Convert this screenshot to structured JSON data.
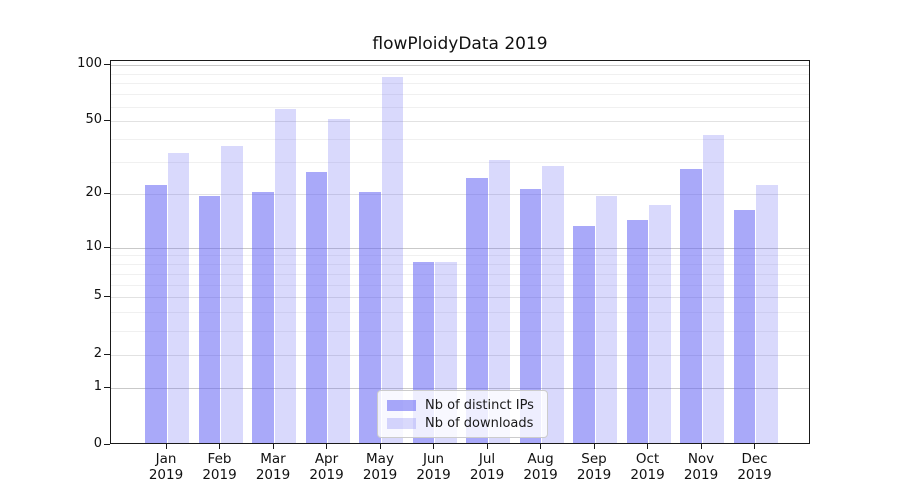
{
  "title": "flowPloidyData 2019",
  "chart_data": {
    "type": "bar",
    "title": "flowPloidyData 2019",
    "categories": [
      "Jan",
      "Feb",
      "Mar",
      "Apr",
      "May",
      "Jun",
      "Jul",
      "Aug",
      "Sep",
      "Oct",
      "Nov",
      "Dec"
    ],
    "year": "2019",
    "series": [
      {
        "name": "Nb of distinct IPs",
        "color": "rgba(98,98,244,0.55)",
        "values": [
          22,
          19,
          20,
          26,
          20,
          8,
          24,
          21,
          13,
          14,
          27,
          16
        ]
      },
      {
        "name": "Nb of downloads",
        "color": "rgba(98,98,244,0.24)",
        "values": [
          33,
          36,
          57,
          50,
          84,
          8,
          30,
          28,
          19,
          17,
          41,
          22
        ]
      }
    ],
    "xlabel": "",
    "ylabel": "",
    "yscale": "log10(1+v)",
    "y_ticks": [
      0,
      1,
      2,
      5,
      10,
      20,
      50,
      100
    ],
    "y_minor_ticks": [
      3,
      4,
      6,
      7,
      8,
      9,
      30,
      40,
      60,
      70,
      80,
      90
    ],
    "ylim": [
      0,
      105
    ],
    "grid": true,
    "legend_position": "lower center"
  },
  "colors": {
    "grid_major": "#c9c9c9",
    "grid_mid": "#e2e2e2",
    "grid_minor": "#f0f0f0",
    "spine": "#1a1a1a",
    "text": "#111111"
  }
}
